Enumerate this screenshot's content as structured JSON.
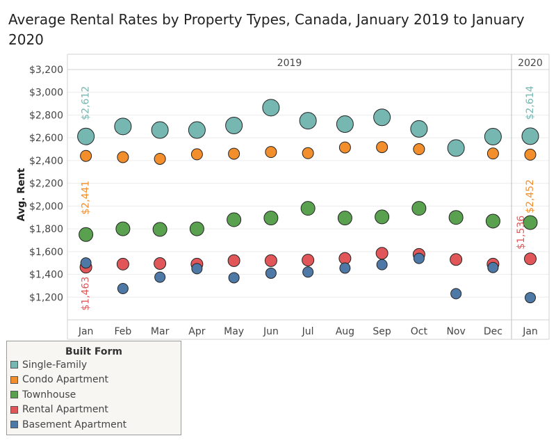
{
  "chart_data": {
    "type": "scatter",
    "title": "Average Rental Rates by Property Types, Canada, January 2019 to January 2020",
    "ylabel": "Avg. Rent",
    "xlabel": "",
    "ylim": [
      1000,
      3200
    ],
    "yticks": [
      1200,
      1400,
      1600,
      1800,
      2000,
      2200,
      2400,
      2600,
      2800,
      3000,
      3200
    ],
    "ytick_labels": [
      "$1,200",
      "$1,400",
      "$1,600",
      "$1,800",
      "$2,000",
      "$2,200",
      "$2,400",
      "$2,600",
      "$2,800",
      "$3,000",
      "$3,200"
    ],
    "year_panels": [
      {
        "label": "2019",
        "categories": [
          "Jan",
          "Feb",
          "Mar",
          "Apr",
          "May",
          "Jun",
          "Jul",
          "Aug",
          "Sep",
          "Oct",
          "Nov",
          "Dec"
        ]
      },
      {
        "label": "2020",
        "categories": [
          "Jan"
        ]
      }
    ],
    "series": [
      {
        "name": "Single-Family",
        "color": "#76b7b2",
        "values": [
          2612,
          2700,
          2668,
          2668,
          2708,
          2865,
          2750,
          2720,
          2780,
          2678,
          2510,
          2610,
          2614
        ]
      },
      {
        "name": "Condo Apartment",
        "color": "#f28e2b",
        "values": [
          2441,
          2430,
          2415,
          2455,
          2460,
          2475,
          2465,
          2515,
          2518,
          2500,
          null,
          2462,
          2452
        ]
      },
      {
        "name": "Townhouse",
        "color": "#59a14f",
        "values": [
          1750,
          1800,
          1795,
          1800,
          1880,
          1895,
          1980,
          1895,
          1905,
          1980,
          1900,
          1868,
          1855
        ]
      },
      {
        "name": "Rental Apartment",
        "color": "#e15759",
        "values": [
          1463,
          1490,
          1495,
          1490,
          1520,
          1520,
          1525,
          1540,
          1585,
          1575,
          1530,
          1490,
          1536
        ]
      },
      {
        "name": "Basement Apartment",
        "color": "#4e79a7",
        "values": [
          1500,
          1275,
          1375,
          1450,
          1370,
          1410,
          1420,
          1455,
          1485,
          1540,
          1230,
          1460,
          1195
        ]
      }
    ],
    "annotations": [
      {
        "text": "$2,612",
        "series": "Single-Family",
        "point": 0
      },
      {
        "text": "$2,441",
        "series": "Condo Apartment",
        "point": 0
      },
      {
        "text": "$1,463",
        "series": "Rental Apartment",
        "point": 0
      },
      {
        "text": "$2,614",
        "series": "Single-Family",
        "point": 12
      },
      {
        "text": "$2,452",
        "series": "Condo Apartment",
        "point": 12
      },
      {
        "text": "$1,536",
        "series": "Rental Apartment",
        "point": 12
      }
    ]
  },
  "legend": {
    "title": "Built Form",
    "items": [
      {
        "label": "Single-Family",
        "color": "#76b7b2"
      },
      {
        "label": "Condo Apartment",
        "color": "#f28e2b"
      },
      {
        "label": "Townhouse",
        "color": "#59a14f"
      },
      {
        "label": "Rental Apartment",
        "color": "#e15759"
      },
      {
        "label": "Basement Apartment",
        "color": "#4e79a7"
      }
    ]
  }
}
